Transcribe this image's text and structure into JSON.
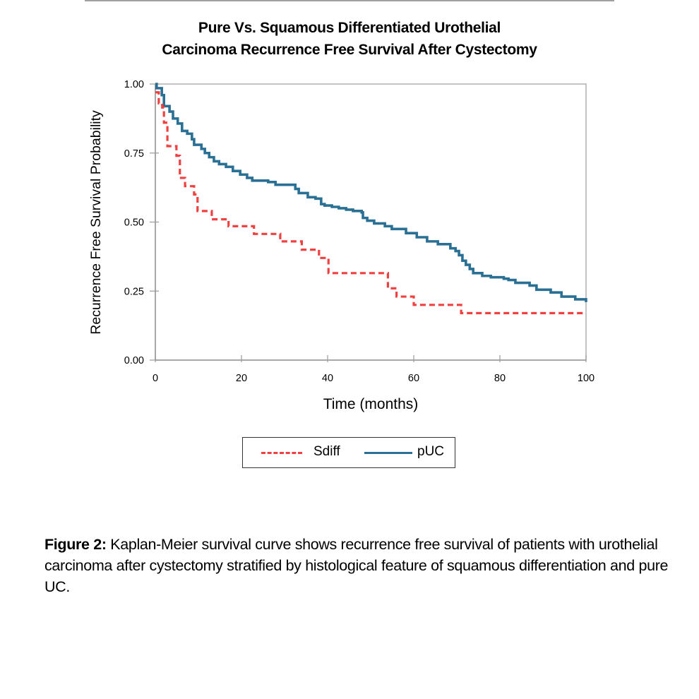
{
  "chart_data": {
    "type": "line",
    "subtype": "kaplan-meier-step",
    "title": [
      "Pure Vs. Squamous Differentiated Urothelial",
      "Carcinoma Recurrence Free Survival After Cystectomy"
    ],
    "xlabel": "Time (months)",
    "ylabel": "Recurrence Free Survival Probability",
    "xlim": [
      0,
      100
    ],
    "ylim": [
      0,
      1
    ],
    "xticks": [
      0,
      20,
      40,
      60,
      80,
      100
    ],
    "xtick_labels": [
      "0",
      "20",
      "40",
      "60",
      "80",
      "100"
    ],
    "yticks": [
      0,
      0.25,
      0.5,
      0.75,
      1.0
    ],
    "ytick_labels": [
      "0.00",
      "0.25",
      "0.50",
      "0.75",
      "1.00"
    ],
    "grid": false,
    "legend_position": "bottom",
    "series": [
      {
        "name": "Sdiff",
        "color": "#f04040",
        "style": "dashed",
        "steps": [
          [
            0,
            0.97
          ],
          [
            0.8,
            0.93
          ],
          [
            1.6,
            0.915
          ],
          [
            2.0,
            0.86
          ],
          [
            2.8,
            0.775
          ],
          [
            4.9,
            0.74
          ],
          [
            5.7,
            0.66
          ],
          [
            6.9,
            0.63
          ],
          [
            9.0,
            0.6
          ],
          [
            9.8,
            0.54
          ],
          [
            13.1,
            0.51
          ],
          [
            17.0,
            0.485
          ],
          [
            22.9,
            0.457
          ],
          [
            29.0,
            0.43
          ],
          [
            34.0,
            0.4
          ],
          [
            38.0,
            0.37
          ],
          [
            40.2,
            0.315
          ],
          [
            54.0,
            0.26
          ],
          [
            56.0,
            0.23
          ],
          [
            60.0,
            0.2
          ],
          [
            71.0,
            0.17
          ],
          [
            100,
            0.17
          ]
        ]
      },
      {
        "name": "pUC",
        "color": "#2a6f94",
        "style": "solid",
        "steps": [
          [
            0,
            1.0
          ],
          [
            0.3,
            0.985
          ],
          [
            1.5,
            0.96
          ],
          [
            2.0,
            0.92
          ],
          [
            3.3,
            0.9
          ],
          [
            4.1,
            0.875
          ],
          [
            5.2,
            0.857
          ],
          [
            6.2,
            0.83
          ],
          [
            7.4,
            0.82
          ],
          [
            8.5,
            0.8
          ],
          [
            9.0,
            0.78
          ],
          [
            10.7,
            0.765
          ],
          [
            11.5,
            0.75
          ],
          [
            12.5,
            0.735
          ],
          [
            13.6,
            0.72
          ],
          [
            14.8,
            0.71
          ],
          [
            16.4,
            0.7
          ],
          [
            18.0,
            0.685
          ],
          [
            19.7,
            0.672
          ],
          [
            21.3,
            0.66
          ],
          [
            22.5,
            0.65
          ],
          [
            26.2,
            0.645
          ],
          [
            27.9,
            0.635
          ],
          [
            32.5,
            0.62
          ],
          [
            33.3,
            0.605
          ],
          [
            35.4,
            0.59
          ],
          [
            37.2,
            0.585
          ],
          [
            38.5,
            0.565
          ],
          [
            39.3,
            0.56
          ],
          [
            41.0,
            0.555
          ],
          [
            42.6,
            0.55
          ],
          [
            44.3,
            0.545
          ],
          [
            45.9,
            0.54
          ],
          [
            47.9,
            0.535
          ],
          [
            48.2,
            0.515
          ],
          [
            49.2,
            0.505
          ],
          [
            50.8,
            0.495
          ],
          [
            53.3,
            0.485
          ],
          [
            54.9,
            0.475
          ],
          [
            58.2,
            0.46
          ],
          [
            60.7,
            0.445
          ],
          [
            63.1,
            0.43
          ],
          [
            65.6,
            0.42
          ],
          [
            68.5,
            0.405
          ],
          [
            69.7,
            0.395
          ],
          [
            70.5,
            0.38
          ],
          [
            71.3,
            0.36
          ],
          [
            72.1,
            0.345
          ],
          [
            73.0,
            0.33
          ],
          [
            73.8,
            0.315
          ],
          [
            75.9,
            0.305
          ],
          [
            77.9,
            0.3
          ],
          [
            80.9,
            0.295
          ],
          [
            82.0,
            0.29
          ],
          [
            83.6,
            0.28
          ],
          [
            86.9,
            0.27
          ],
          [
            88.5,
            0.255
          ],
          [
            91.8,
            0.245
          ],
          [
            94.3,
            0.23
          ],
          [
            97.5,
            0.22
          ],
          [
            100,
            0.21
          ]
        ]
      }
    ]
  },
  "legend": {
    "items": [
      {
        "label": "Sdiff",
        "color": "#f04040",
        "style": "dashed"
      },
      {
        "label": "pUC",
        "color": "#2a6f94",
        "style": "solid"
      }
    ]
  },
  "caption": {
    "label": "Figure 2:",
    "text": " Kaplan-Meier survival curve shows recurrence free survival of patients with urothelial carcinoma after cystectomy stratified by histological feature of squamous differentiation and pure UC."
  }
}
